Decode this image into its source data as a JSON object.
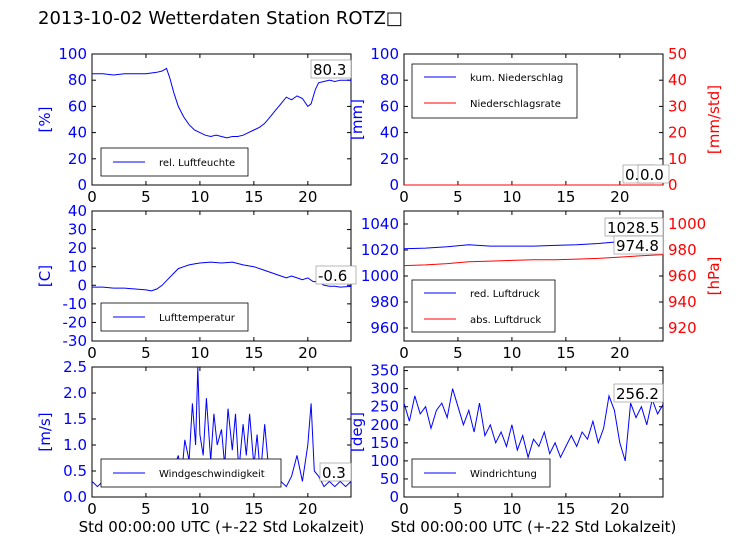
{
  "title": "2013-10-02 Wetterdaten Station ROTZ□",
  "xlabel": "Std 00:00:00 UTC (+-22 Std Lokalzeit)",
  "chart_data": [
    {
      "type": "line",
      "panel": "humidity",
      "ylabel": "[%]",
      "ylim": [
        0,
        100
      ],
      "xlim": [
        0,
        24
      ],
      "yticks": [
        0,
        20,
        40,
        60,
        80,
        100
      ],
      "xticks": [
        0,
        5,
        10,
        15,
        20
      ],
      "legend_placement": "bottom-left",
      "annotation": "80.3",
      "series": [
        {
          "name": "rel. Luftfeuchte",
          "color": "#0000ff",
          "x": [
            0,
            1,
            2,
            3,
            4,
            5,
            6,
            6.5,
            6.9,
            7.2,
            7.6,
            8,
            8.5,
            9,
            9.5,
            10,
            10.5,
            11,
            11.5,
            12,
            12.5,
            13,
            13.5,
            14,
            14.5,
            15,
            15.5,
            16,
            16.5,
            17,
            17.5,
            18,
            18.5,
            19,
            19.5,
            20,
            20.3,
            20.7,
            21,
            21.5,
            22,
            22.5,
            23,
            23.5,
            24
          ],
          "y": [
            85,
            85,
            84,
            85,
            85,
            85,
            86,
            87,
            89,
            82,
            70,
            60,
            52,
            46,
            42,
            40,
            38,
            37,
            38,
            37,
            36,
            37,
            37,
            38,
            40,
            42,
            44,
            47,
            52,
            57,
            62,
            67,
            65,
            68,
            66,
            60,
            62,
            73,
            78,
            79,
            80,
            79,
            80,
            80,
            80
          ]
        }
      ]
    },
    {
      "type": "line",
      "panel": "precipitation",
      "ylabel": "[mm]",
      "ylabel_right": "[mm/std]",
      "ylim": [
        0,
        100
      ],
      "ylim_right": [
        0,
        50
      ],
      "xlim": [
        0,
        24
      ],
      "yticks": [
        0,
        20,
        40,
        60,
        80,
        100
      ],
      "yticks_right": [
        0,
        10,
        20,
        30,
        40,
        50
      ],
      "xticks": [
        0,
        5,
        10,
        15,
        20
      ],
      "legend_placement": "top-left",
      "annotations": [
        "0.0",
        "0.0"
      ],
      "series": [
        {
          "name": "kum. Niederschlag",
          "color": "#0000ff",
          "x": [
            0,
            24
          ],
          "y": [
            0,
            0
          ]
        },
        {
          "name": "Niederschlagsrate",
          "color": "#ff0000",
          "x": [
            0,
            24
          ],
          "y": [
            0,
            0
          ]
        }
      ]
    },
    {
      "type": "line",
      "panel": "temperature",
      "ylabel": "[C]",
      "ylim": [
        -30,
        40
      ],
      "xlim": [
        0,
        24
      ],
      "yticks": [
        -30,
        -20,
        -10,
        0,
        10,
        20,
        30,
        40
      ],
      "xticks": [
        0,
        5,
        10,
        15,
        20
      ],
      "legend_placement": "bottom-left",
      "annotation": "-0.6",
      "series": [
        {
          "name": "Lufttemperatur",
          "color": "#0000ff",
          "x": [
            0,
            1,
            2,
            3,
            4,
            5,
            5.5,
            6,
            6.5,
            7,
            7.5,
            8,
            8.5,
            9,
            9.5,
            10,
            11,
            12,
            13,
            14,
            15,
            16,
            17,
            17.5,
            18,
            18.5,
            19,
            19.5,
            20,
            20.5,
            21,
            21.5,
            22,
            22.5,
            23,
            23.5,
            24
          ],
          "y": [
            -1,
            -1,
            -1.5,
            -1.5,
            -2,
            -2.5,
            -3,
            -2,
            0,
            3,
            6,
            9,
            10,
            11,
            11.5,
            12,
            12.5,
            12,
            12.5,
            11,
            10,
            8,
            6,
            5,
            4,
            5,
            4,
            3,
            4,
            2,
            2,
            0,
            -0.5,
            -0.5,
            -1,
            -0.8,
            -0.6
          ]
        }
      ]
    },
    {
      "type": "line",
      "panel": "pressure",
      "ylabel_right": "[hPa]",
      "ylim": [
        950,
        1050
      ],
      "ylim_right": [
        910,
        1010
      ],
      "xlim": [
        0,
        24
      ],
      "yticks": [
        960,
        980,
        1000,
        1020,
        1040
      ],
      "yticks_right": [
        920,
        940,
        960,
        980,
        1000
      ],
      "xticks": [
        0,
        5,
        10,
        15,
        20
      ],
      "legend_placement": "bottom-left",
      "annotations": [
        "1028.5",
        "974.8"
      ],
      "series": [
        {
          "name": "red. Luftdruck",
          "color": "#0000ff",
          "x": [
            0,
            2,
            4,
            6,
            8,
            10,
            12,
            14,
            16,
            18,
            20,
            22,
            24
          ],
          "y": [
            1021,
            1021.5,
            1022.5,
            1024,
            1023,
            1023,
            1023,
            1023.5,
            1024,
            1025,
            1026.5,
            1027.5,
            1028.5
          ]
        },
        {
          "name": "abs. Luftdruck",
          "color": "#ff0000",
          "x": [
            0,
            2,
            4,
            6,
            8,
            10,
            12,
            14,
            16,
            18,
            20,
            22,
            24
          ],
          "y": [
            1008,
            1008.5,
            1009.5,
            1011,
            1011.5,
            1012,
            1012.5,
            1012.5,
            1013,
            1013.5,
            1014.5,
            1015.5,
            1016.5
          ]
        }
      ]
    },
    {
      "type": "line",
      "panel": "windspeed",
      "ylabel": "[m/s]",
      "ylim": [
        0,
        2.5
      ],
      "xlim": [
        0,
        24
      ],
      "yticks": [
        0.0,
        0.5,
        1.0,
        1.5,
        2.0,
        2.5
      ],
      "xticks": [
        0,
        5,
        10,
        15,
        20
      ],
      "legend_placement": "bottom-left",
      "annotation": "0.3",
      "series": [
        {
          "name": "Windgeschwindigkeit",
          "color": "#0000ff",
          "x": [
            0,
            0.5,
            1,
            1.5,
            2,
            2.5,
            3,
            3.5,
            4,
            4.5,
            5,
            5.5,
            6,
            6.5,
            7,
            7.5,
            8,
            8.3,
            8.6,
            9,
            9.3,
            9.6,
            9.8,
            10,
            10.3,
            10.6,
            11,
            11.3,
            11.6,
            12,
            12.3,
            12.6,
            13,
            13.3,
            13.6,
            14,
            14.3,
            14.6,
            15,
            15.3,
            15.6,
            16,
            16.3,
            16.6,
            17,
            17.5,
            18,
            18.5,
            19,
            19.5,
            20,
            20.3,
            20.6,
            21,
            21.5,
            22,
            22.5,
            23,
            23.5,
            24
          ],
          "y": [
            0.3,
            0.2,
            0.3,
            0.2,
            0.3,
            0.2,
            0.3,
            0.2,
            0.3,
            0.4,
            0.3,
            0.5,
            0.4,
            0.5,
            0.3,
            0.5,
            0.8,
            0.4,
            1.1,
            0.7,
            1.8,
            1.0,
            2.5,
            1.2,
            0.8,
            1.9,
            0.7,
            1.6,
            1.0,
            1.3,
            0.6,
            1.7,
            0.9,
            1.6,
            0.5,
            1.4,
            0.8,
            1.6,
            0.6,
            1.2,
            0.4,
            1.4,
            0.7,
            0.3,
            0.2,
            0.3,
            0.2,
            0.4,
            0.8,
            0.3,
            1.0,
            1.8,
            0.5,
            0.4,
            0.2,
            0.3,
            0.2,
            0.3,
            0.2,
            0.3
          ]
        }
      ]
    },
    {
      "type": "line",
      "panel": "winddirection",
      "ylabel": "[deg]",
      "ylim": [
        0,
        360
      ],
      "xlim": [
        0,
        24
      ],
      "yticks": [
        0,
        50,
        100,
        150,
        200,
        250,
        300,
        350
      ],
      "xticks": [
        0,
        5,
        10,
        15,
        20
      ],
      "legend_placement": "bottom-left",
      "annotation": "256.2",
      "series": [
        {
          "name": "Windrichtung",
          "color": "#0000ff",
          "x": [
            0,
            0.5,
            1,
            1.5,
            2,
            2.5,
            3,
            3.5,
            4,
            4.5,
            5,
            5.5,
            6,
            6.5,
            7,
            7.5,
            8,
            8.5,
            9,
            9.5,
            10,
            10.5,
            11,
            11.5,
            12,
            12.5,
            13,
            13.5,
            14,
            14.5,
            15,
            15.5,
            16,
            16.5,
            17,
            17.5,
            18,
            18.5,
            19,
            19.5,
            20,
            20.5,
            21,
            21.5,
            22,
            22.5,
            23,
            23.5,
            24
          ],
          "y": [
            260,
            210,
            280,
            230,
            250,
            190,
            240,
            260,
            220,
            300,
            250,
            200,
            240,
            180,
            260,
            170,
            200,
            150,
            180,
            140,
            200,
            130,
            170,
            110,
            160,
            140,
            180,
            120,
            150,
            110,
            140,
            170,
            140,
            180,
            160,
            210,
            150,
            190,
            280,
            240,
            150,
            100,
            260,
            220,
            250,
            200,
            270,
            230,
            256
          ]
        }
      ]
    }
  ]
}
